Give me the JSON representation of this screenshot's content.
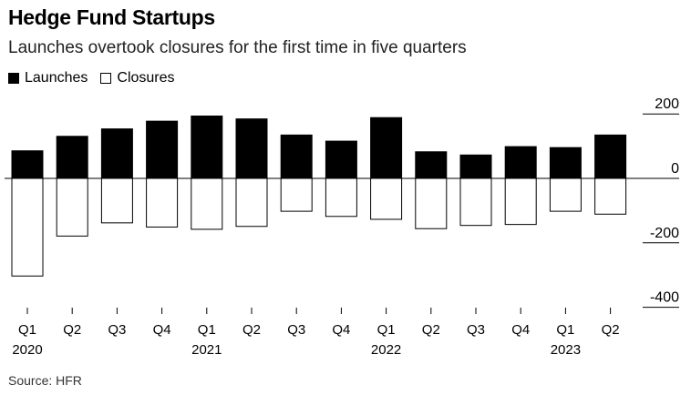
{
  "title": "Hedge Fund Startups",
  "subtitle": "Launches overtook closures for the first time in five quarters",
  "legend": {
    "launches": "Launches",
    "closures": "Closures"
  },
  "source": "Source: HFR",
  "chart_data": {
    "type": "bar",
    "title": "Hedge Fund Startups",
    "subtitle": "Launches overtook closures for the first time in five quarters",
    "xlabel": "",
    "ylabel": "",
    "ylim": [
      -400,
      200
    ],
    "yticks": [
      200,
      0,
      -200,
      -400
    ],
    "ytick_labels": [
      "200",
      "0",
      "-200",
      "-400"
    ],
    "categories": [
      "Q1 2020",
      "Q2 2020",
      "Q3 2020",
      "Q4 2020",
      "Q1 2021",
      "Q2 2021",
      "Q3 2021",
      "Q4 2021",
      "Q1 2022",
      "Q2 2022",
      "Q3 2022",
      "Q4 2022",
      "Q1 2023",
      "Q2 2023"
    ],
    "quarter_labels": [
      "Q1",
      "Q2",
      "Q3",
      "Q4",
      "Q1",
      "Q2",
      "Q3",
      "Q4",
      "Q1",
      "Q2",
      "Q3",
      "Q4",
      "Q1",
      "Q2"
    ],
    "year_labels": [
      "2020",
      "",
      "",
      "",
      "2021",
      "",
      "",
      "",
      "2022",
      "",
      "",
      "",
      "2023",
      ""
    ],
    "series": [
      {
        "name": "Launches",
        "style": "filled",
        "values": [
          87,
          132,
          155,
          179,
          195,
          186,
          136,
          117,
          190,
          84,
          74,
          100,
          97,
          136
        ]
      },
      {
        "name": "Closures",
        "style": "outline",
        "values": [
          -303,
          -179,
          -138,
          -151,
          -158,
          -149,
          -102,
          -118,
          -127,
          -156,
          -146,
          -143,
          -102,
          -111
        ]
      }
    ],
    "legend_position": "top-left",
    "grid": false,
    "colors": {
      "launches": "#000000",
      "closures": "#ffffff",
      "outline": "#000000"
    }
  }
}
